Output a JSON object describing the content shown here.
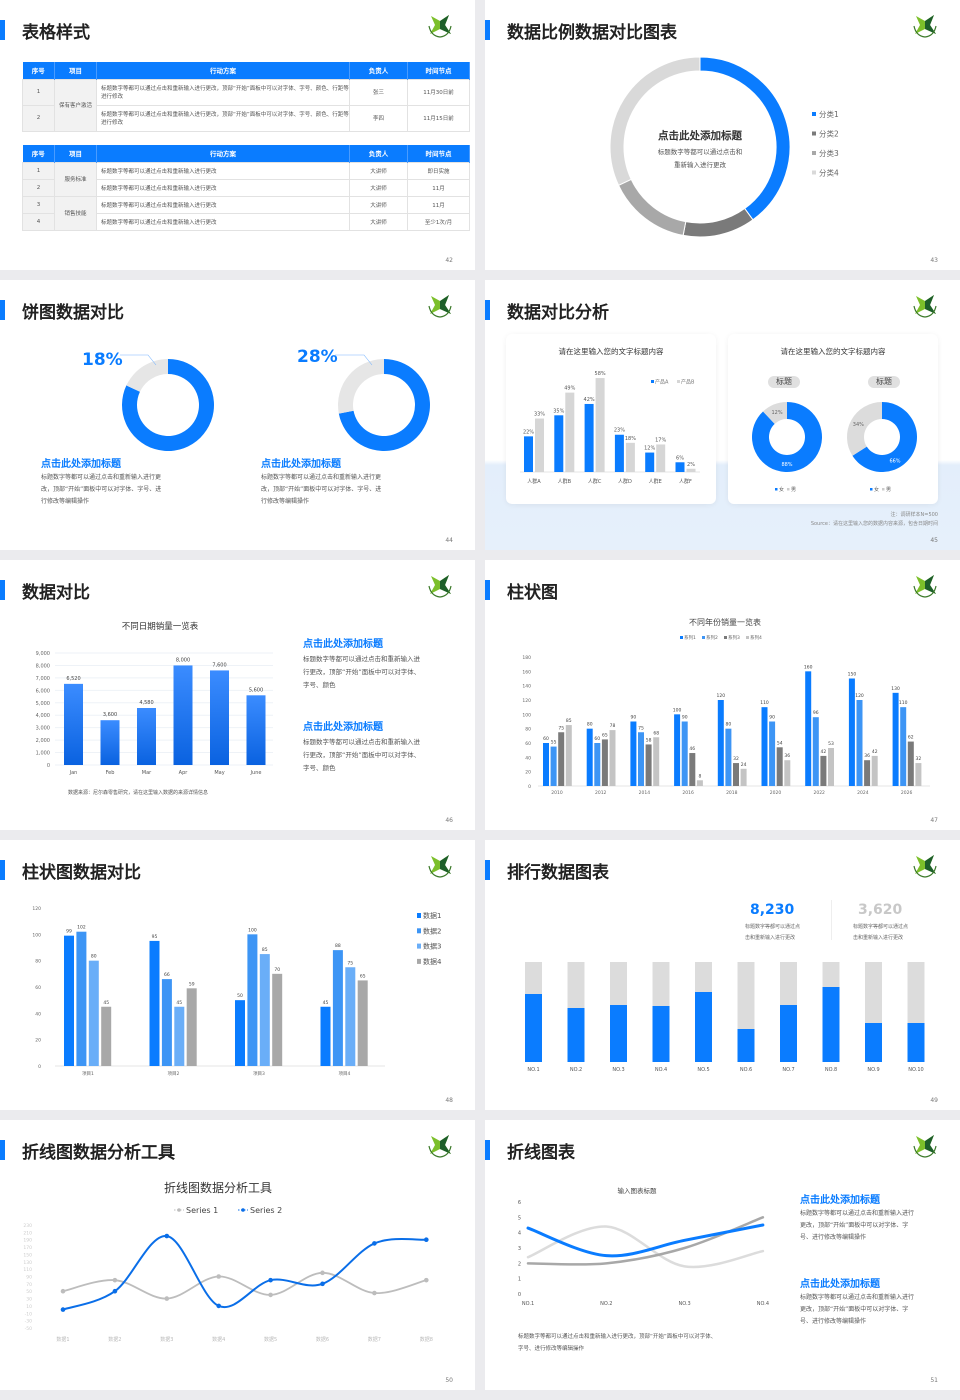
{
  "colors": {
    "accent": "#0a7cff",
    "blue2": "#3d95f5",
    "blue3": "#6aaef8",
    "gray": "#a8a8a8",
    "lightgray": "#d9d9d9",
    "darkgray": "#7a7a7a"
  },
  "logo_icon": "green-star-wreath-logo",
  "slides": [
    {
      "title": "表格样式",
      "page": "42",
      "headers": [
        "序号",
        "项目",
        "行动方案",
        "负责人",
        "时间节点"
      ],
      "table1": {
        "group": "保有客户激活",
        "rows": [
          {
            "no": "1",
            "plan": "标题数字等都可以通过点击和重新输入进行更改，顶部“开始”面板中可以对字体、字号、颜色、行距等进行修改",
            "owner": "张三",
            "time": "11月30日前"
          },
          {
            "no": "2",
            "plan": "标题数字等都可以通过点击和重新输入进行更改，顶部“开始”面板中可以对字体、字号、颜色、行距等进行修改",
            "owner": "李四",
            "time": "11月15日前"
          }
        ]
      },
      "table2": {
        "groups": [
          "服务标准",
          "销售技能"
        ],
        "rows": [
          {
            "no": "1",
            "plan": "标题数字等都可以通过点击和重新输入进行更改",
            "owner": "大讲师",
            "time": "即日实施"
          },
          {
            "no": "2",
            "plan": "标题数字等都可以通过点击和重新输入进行更改",
            "owner": "大讲师",
            "time": "11月"
          },
          {
            "no": "3",
            "plan": "标题数字等都可以通过点击和重新输入进行更改",
            "owner": "大讲师",
            "time": "11月"
          },
          {
            "no": "4",
            "plan": "标题数字等都可以通过点击和重新输入进行更改",
            "owner": "大讲师",
            "time": "至少1次/月"
          }
        ]
      }
    },
    {
      "title": "数据比例数据对比图表",
      "page": "43",
      "center_title": "点击此处添加标题",
      "center_text": [
        "标题数字等都可以通过点击和",
        "重新输入进行更改"
      ]
    },
    {
      "title": "饼图数据对比",
      "page": "44",
      "items": [
        {
          "pct": "18%",
          "heading": "点击此处添加标题",
          "text": [
            "标题数字等都可以通过点击和重新输入进行更",
            "改，顶部“开始”面板中可以对字体、字号、进",
            "行修改等编辑操作"
          ]
        },
        {
          "pct": "28%",
          "heading": "点击此处添加标题",
          "text": [
            "标题数字等都可以通过点击和重新输入进行更",
            "改，顶部“开始”面板中可以对字体、字号、进",
            "行修改等编辑操作"
          ]
        }
      ]
    },
    {
      "title": "数据对比分析",
      "page": "45",
      "card1_title": "请在这里输入您的文字标题内容",
      "card2_title": "请在这里输入您的文字标题内容",
      "tags": [
        "标题",
        "标题"
      ],
      "note": "注：调研样本N=500",
      "source": "Source：请在这里输入您的数据内容来源，包含日期时间"
    },
    {
      "title": "数据对比",
      "page": "46",
      "source": "数据来源：尼尔森零售研究，请在这里输入数据的来源详情信息",
      "blocks": [
        {
          "heading": "点击此处添加标题",
          "text": [
            "标题数字等都可以通过点击和重新输入进",
            "行更改，顶部“开始”面板中可以对字体、",
            "字号、颜色"
          ]
        },
        {
          "heading": "点击此处添加标题",
          "text": [
            "标题数字等都可以通过点击和重新输入进",
            "行更改，顶部“开始”面板中可以对字体、",
            "字号、颜色"
          ]
        }
      ]
    },
    {
      "title": "柱状图",
      "page": "47"
    },
    {
      "title": "柱状图数据对比",
      "page": "48"
    },
    {
      "title": "排行数据图表",
      "page": "49",
      "stats": [
        {
          "value": "8,230",
          "text": [
            "标题数字等都可以通过点",
            "击和重新输入进行更改"
          ]
        },
        {
          "value": "3,620",
          "text": [
            "标题数字等都可以通过点",
            "击和重新输入进行更改"
          ]
        }
      ]
    },
    {
      "title": "折线图数据分析工具",
      "page": "50"
    },
    {
      "title": "折线图表",
      "page": "51",
      "bottom_text": [
        "标题数字等都可以通过点击和重新输入进行更改，顶部“开始”面板中可以对字体、",
        "字号、进行修改等编辑操作"
      ],
      "blocks": [
        {
          "heading": "点击此处添加标题",
          "text": [
            "标题数字等都可以通过点击和重新输入进行",
            "更改，顶部“开始”面板中可以对字体、字",
            "号、进行修改等编辑操作"
          ]
        },
        {
          "heading": "点击此处添加标题",
          "text": [
            "标题数字等都可以通过点击和重新输入进行",
            "更改，顶部“开始”面板中可以对字体、字",
            "号、进行修改等编辑操作"
          ]
        }
      ]
    }
  ],
  "chart_data": [
    {
      "id": "category-donut",
      "type": "pie",
      "donut": true,
      "categories": [
        "分类1",
        "分类2",
        "分类3",
        "分类4"
      ],
      "values": [
        40,
        13,
        15,
        32
      ],
      "legend": "right"
    },
    {
      "id": "pct-donut-1",
      "type": "pie",
      "donut": true,
      "values": [
        82,
        18
      ]
    },
    {
      "id": "pct-donut-2",
      "type": "pie",
      "donut": true,
      "values": [
        72,
        28
      ]
    },
    {
      "id": "crowd-bars",
      "type": "bar",
      "categories": [
        "人群A",
        "人群B",
        "人群C",
        "人群D",
        "人群E",
        "人群F"
      ],
      "series": [
        {
          "name": "产品A",
          "values": [
            22,
            35,
            42,
            23,
            12,
            6
          ]
        },
        {
          "name": "产品B",
          "values": [
            33,
            49,
            58,
            18,
            17,
            2
          ]
        }
      ],
      "unit": "%",
      "legend": "top-right"
    },
    {
      "id": "gender-donut-1",
      "type": "pie",
      "donut": true,
      "categories": [
        "女",
        "男"
      ],
      "values": [
        88,
        12
      ],
      "unit": "%"
    },
    {
      "id": "gender-donut-2",
      "type": "pie",
      "donut": true,
      "categories": [
        "女",
        "男"
      ],
      "values": [
        66,
        34
      ],
      "unit": "%"
    },
    {
      "id": "monthly-sales",
      "type": "bar",
      "title": "不同日期销量一览表",
      "categories": [
        "Jan",
        "Feb",
        "Mar",
        "Apr",
        "May",
        "June"
      ],
      "values": [
        6520,
        3600,
        4580,
        8000,
        7600,
        5600
      ],
      "ylim": [
        0,
        9000
      ],
      "ytick_step": 1000,
      "grid": true
    },
    {
      "id": "yearly-sales",
      "type": "bar",
      "title": "不同年份销量一览表",
      "categories": [
        "2010",
        "2012",
        "2014",
        "2016",
        "2018",
        "2020",
        "2022",
        "2024",
        "2026"
      ],
      "series": [
        {
          "name": "系列1",
          "values": [
            60,
            80,
            90,
            100,
            120,
            110,
            160,
            150,
            130
          ]
        },
        {
          "name": "系列2",
          "values": [
            55,
            60,
            75,
            90,
            80,
            90,
            96,
            120,
            110
          ]
        },
        {
          "name": "系列3",
          "values": [
            75,
            65,
            58,
            46,
            32,
            54,
            42,
            36,
            62
          ]
        },
        {
          "name": "系列4",
          "values": [
            85,
            78,
            68,
            8,
            24,
            36,
            53,
            42,
            32
          ]
        }
      ],
      "ylim": [
        0,
        180
      ],
      "ytick_step": 20,
      "legend": "top"
    },
    {
      "id": "project-bars",
      "type": "bar",
      "categories": [
        "项目1",
        "项目2",
        "项目3",
        "项目4"
      ],
      "series": [
        {
          "name": "数据1",
          "values": [
            99,
            95,
            50,
            45
          ]
        },
        {
          "name": "数据2",
          "values": [
            102,
            66,
            100,
            88
          ]
        },
        {
          "name": "数据3",
          "values": [
            80,
            45,
            85,
            75
          ]
        },
        {
          "name": "数据4",
          "values": [
            45,
            59,
            70,
            65
          ]
        }
      ],
      "ylim": [
        0,
        120
      ],
      "ytick_step": 20,
      "legend": "right"
    },
    {
      "id": "ranking-bars",
      "type": "bar",
      "stacked_progress": true,
      "categories": [
        "NO.1",
        "NO.2",
        "NO.3",
        "NO.4",
        "NO.5",
        "NO.6",
        "NO.7",
        "NO.8",
        "NO.9",
        "NO.10"
      ],
      "values": [
        0.68,
        0.54,
        0.57,
        0.56,
        0.7,
        0.33,
        0.57,
        0.75,
        0.39,
        0.39
      ]
    },
    {
      "id": "line-tool",
      "type": "line",
      "title": "折线图数据分析工具",
      "categories": [
        "数据1",
        "数据2",
        "数据3",
        "数据4",
        "数据5",
        "数据6",
        "数据7",
        "数据8"
      ],
      "series": [
        {
          "name": "Series 1",
          "values": [
            50,
            80,
            30,
            90,
            40,
            100,
            45,
            80
          ]
        },
        {
          "name": "Series 2",
          "values": [
            0,
            50,
            200,
            10,
            80,
            70,
            180,
            190
          ]
        }
      ],
      "ylim": [
        -50,
        230
      ],
      "ytick_step": 20,
      "legend": "top",
      "smooth": true
    },
    {
      "id": "line-simple",
      "type": "line",
      "title": "输入图表标题",
      "categories": [
        "NO.1",
        "NO.2",
        "NO.3",
        "NO.4"
      ],
      "series": [
        {
          "values": [
            4.3,
            2.5,
            3.5,
            4.5
          ]
        },
        {
          "values": [
            2.4,
            4.4,
            1.8,
            2.8
          ]
        },
        {
          "values": [
            2,
            2,
            3,
            5
          ]
        }
      ],
      "ylim": [
        0,
        6
      ],
      "ytick_step": 1,
      "smooth": true
    }
  ]
}
